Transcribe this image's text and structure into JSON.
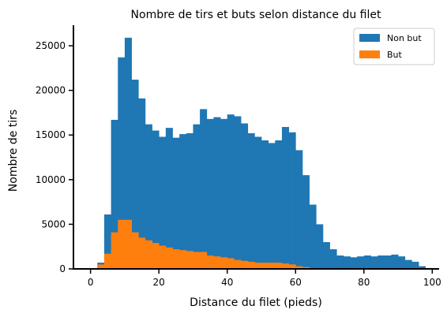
{
  "chart_data": {
    "type": "bar",
    "title": "Nombre de tirs et buts selon distance du filet",
    "xlabel": "Distance du filet (pieds)",
    "ylabel": "Nombre de tirs",
    "xlim": [
      -5,
      102
    ],
    "ylim": [
      0,
      27300
    ],
    "xticks": [
      0,
      20,
      40,
      60,
      80,
      100
    ],
    "yticks": [
      0,
      5000,
      10000,
      15000,
      20000,
      25000
    ],
    "legend_position": "top-right",
    "bin_width": 2,
    "bin_start": 2,
    "series": [
      {
        "name": "Non but",
        "color": "#1f77b4",
        "values": [
          700,
          6100,
          16700,
          23700,
          25900,
          21200,
          19100,
          16200,
          15500,
          14800,
          15800,
          14700,
          15100,
          15200,
          16200,
          17900,
          16800,
          17000,
          16800,
          17300,
          17100,
          16300,
          15200,
          14800,
          14400,
          14100,
          14400,
          15900,
          15300,
          13300,
          10500,
          7200,
          5000,
          3000,
          2200,
          1500,
          1400,
          1300,
          1400,
          1500,
          1400,
          1500,
          1500,
          1600,
          1400,
          1000,
          800,
          300,
          100
        ]
      },
      {
        "name": "But",
        "color": "#ff7f0e",
        "values": [
          500,
          1700,
          4100,
          5500,
          5500,
          4100,
          3500,
          3200,
          2900,
          2600,
          2400,
          2200,
          2100,
          2000,
          1900,
          1900,
          1500,
          1400,
          1300,
          1200,
          1000,
          900,
          800,
          700,
          700,
          700,
          700,
          600,
          500,
          300,
          200,
          100,
          0,
          0,
          0,
          0,
          0,
          0,
          0,
          0,
          0,
          0,
          0,
          0,
          0,
          0,
          0,
          0,
          0
        ]
      }
    ]
  }
}
